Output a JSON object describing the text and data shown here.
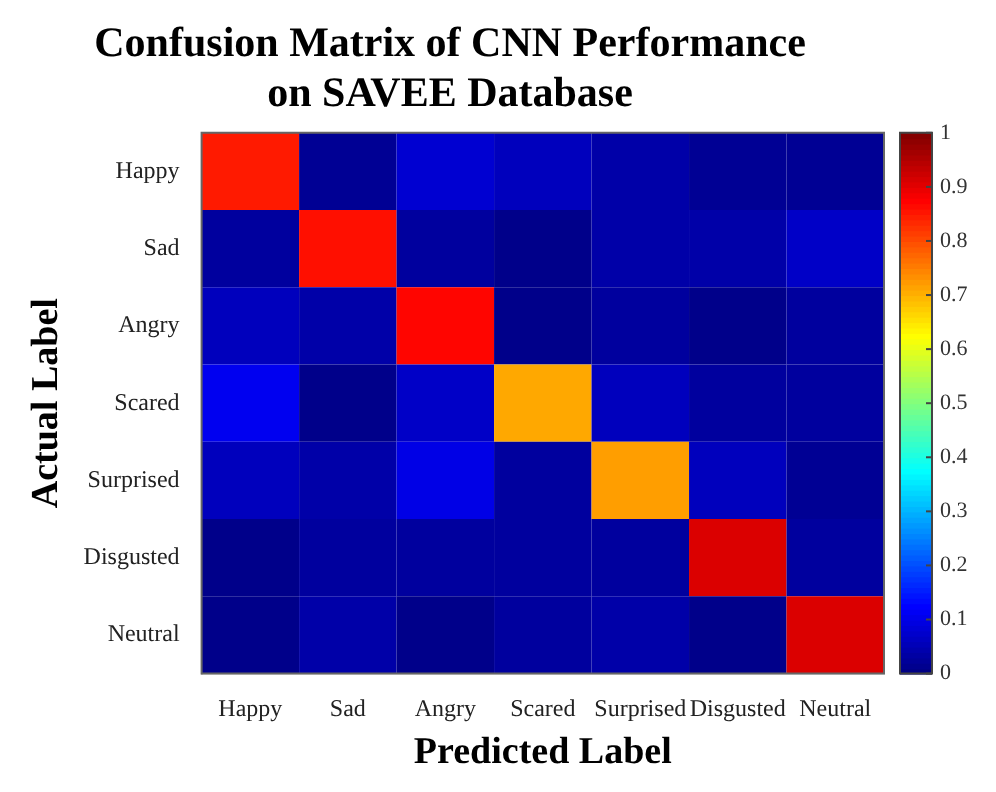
{
  "chart_data": {
    "type": "heatmap",
    "title": "Confusion Matrix of CNN Performance on SAVEE Database",
    "xlabel": "Predicted Label",
    "ylabel": "Actual Label",
    "categories": [
      "Happy",
      "Sad",
      "Angry",
      "Scared",
      "Surprised",
      "Disgusted",
      "Neutral"
    ],
    "y_categories": [
      "Happy",
      "Sad",
      "Angry",
      "Scared",
      "Surprised",
      "Disgusted",
      "Neutral"
    ],
    "cells": [
      [
        0.85,
        0.02,
        0.08,
        0.06,
        0.04,
        0.02,
        0.02
      ],
      [
        0.03,
        0.86,
        0.03,
        0.01,
        0.04,
        0.04,
        0.07
      ],
      [
        0.06,
        0.04,
        0.87,
        0.01,
        0.03,
        0.01,
        0.03
      ],
      [
        0.11,
        0.01,
        0.07,
        0.71,
        0.06,
        0.03,
        0.03
      ],
      [
        0.06,
        0.04,
        0.1,
        0.03,
        0.72,
        0.06,
        0.02
      ],
      [
        0.01,
        0.03,
        0.03,
        0.03,
        0.03,
        0.91,
        0.03
      ],
      [
        0.01,
        0.04,
        0.01,
        0.03,
        0.04,
        0.01,
        0.91
      ]
    ],
    "clim": [
      0,
      1
    ],
    "cticks": [
      0,
      0.1,
      0.2,
      0.3,
      0.4,
      0.5,
      0.6,
      0.7,
      0.8,
      0.9,
      1
    ]
  }
}
